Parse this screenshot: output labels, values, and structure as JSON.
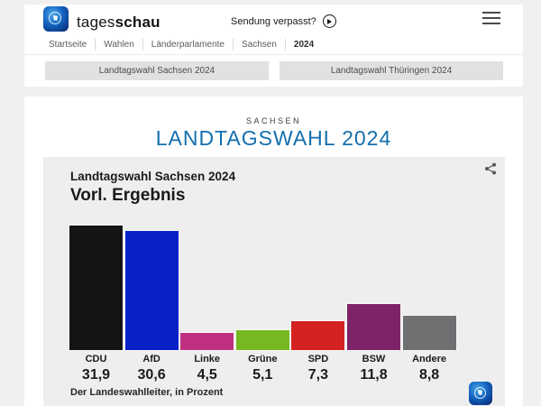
{
  "header": {
    "brand": {
      "name_regular": "tages",
      "name_bold": "schau"
    },
    "sendung_verpasst_label": "Sendung verpasst?",
    "breadcrumb": [
      "Startseite",
      "Wahlen",
      "Länderparlamente",
      "Sachsen",
      "2024"
    ],
    "tabs": [
      {
        "label": "Landtagswahl Sachsen 2024"
      },
      {
        "label": "Landtagswahl Thüringen 2024"
      }
    ]
  },
  "main": {
    "kicker": "SACHSEN",
    "title": "LANDTAGSWAHL 2024",
    "title_color": "#136fae"
  },
  "chart_data": {
    "type": "bar",
    "title": "Landtagswahl Sachsen 2024",
    "subtitle": "Vorl. Ergebnis",
    "source": "Der Landeswahlleiter, in Prozent",
    "categories": [
      "CDU",
      "AfD",
      "Linke",
      "Grüne",
      "SPD",
      "BSW",
      "Andere"
    ],
    "values": [
      31.9,
      30.6,
      4.5,
      5.1,
      7.3,
      11.8,
      8.8
    ],
    "value_labels": [
      "31,9",
      "30,6",
      "4,5",
      "5,1",
      "7,3",
      "11,8",
      "8,8"
    ],
    "colors": [
      "#141414",
      "#0822c8",
      "#bf3180",
      "#76b822",
      "#d42222",
      "#7f2368",
      "#6f7072"
    ],
    "unit": "Prozent",
    "ylim": [
      0,
      32
    ],
    "grid": false,
    "legend": "none",
    "background": "#eeeeee"
  },
  "icons": {
    "play": "play-icon",
    "menu": "hamburger-menu-icon",
    "share": "share-icon",
    "logo": "tagesschau-globe-logo"
  }
}
